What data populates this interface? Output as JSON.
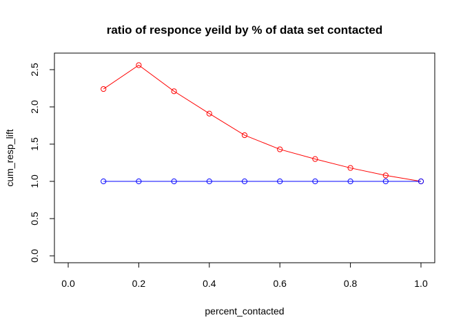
{
  "chart_data": {
    "type": "line",
    "title": "ratio of responce yeild by % of data set contacted",
    "xlabel": "percent_contacted",
    "ylabel": "cum_resp_lift",
    "xlim": [
      0.0,
      1.0
    ],
    "ylim": [
      0.0,
      2.5
    ],
    "xticks": [
      "0.0",
      "0.2",
      "0.4",
      "0.6",
      "0.8",
      "1.0"
    ],
    "yticks": [
      "0.0",
      "0.5",
      "1.0",
      "1.5",
      "2.0",
      "2.5"
    ],
    "grid": false,
    "legend": "none",
    "series": [
      {
        "color": "#ff0000",
        "x": [
          0.1,
          0.2,
          0.3,
          0.4,
          0.5,
          0.6,
          0.7,
          0.8,
          0.9,
          1.0
        ],
        "y": [
          2.24,
          2.56,
          2.21,
          1.91,
          1.62,
          1.43,
          1.3,
          1.18,
          1.08,
          1.0
        ]
      },
      {
        "color": "#0000ff",
        "x": [
          0.1,
          0.2,
          0.3,
          0.4,
          0.5,
          0.6,
          0.7,
          0.8,
          0.9,
          1.0
        ],
        "y": [
          1.0,
          1.0,
          1.0,
          1.0,
          1.0,
          1.0,
          1.0,
          1.0,
          1.0,
          1.0
        ]
      }
    ]
  }
}
